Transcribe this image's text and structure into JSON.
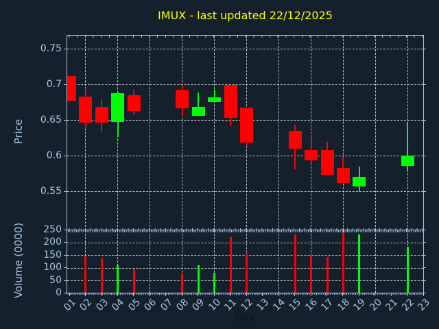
{
  "chart": {
    "title": "IMUX - last updated 22/12/2025",
    "xlabel": "Day",
    "price_ylabel": "Price",
    "volume_ylabel": "Volume (0000)"
  },
  "colors": {
    "background": "#15202d",
    "axis": "#a9c5e3",
    "grid": "rgba(217,224,231,0.85)",
    "title": "#ffff00",
    "xlabel_text": "#0c1421",
    "up": "#00ff00",
    "down": "#ff0000"
  },
  "chart_data": {
    "type": "candlestick_with_volume_bars",
    "title": "IMUX - last updated 22/12/2025",
    "xlabel": "Day",
    "price_axis": {
      "label": "Price",
      "tick_labels": [
        "0.75",
        "0.7",
        "0.65",
        "0.6",
        "0.55"
      ],
      "tick_values": [
        0.75,
        0.7,
        0.65,
        0.6,
        0.55
      ],
      "ylim": [
        0.496,
        0.769
      ],
      "grid": true
    },
    "volume_axis": {
      "label": "Volume (0000)",
      "tick_labels": [
        "250",
        "200",
        "150",
        "100",
        "50",
        "0"
      ],
      "tick_values": [
        250,
        200,
        150,
        100,
        50,
        0
      ],
      "ylim": [
        0,
        250
      ],
      "grid": true
    },
    "x_tick_labels": [
      "01",
      "02",
      "03",
      "04",
      "05",
      "06",
      "07",
      "08",
      "09",
      "10",
      "11",
      "12",
      "13",
      "14",
      "15",
      "16",
      "17",
      "18",
      "19",
      "20",
      "21",
      "22",
      "23"
    ],
    "vertical_grid_days": [
      2,
      4,
      6,
      8,
      10,
      12,
      14,
      16,
      18,
      20,
      22
    ],
    "candles": [
      {
        "day": 1,
        "open": 0.712,
        "high": 0.712,
        "low": 0.678,
        "close": 0.678,
        "direction": "down"
      },
      {
        "day": 2,
        "open": 0.684,
        "high": 0.695,
        "low": 0.639,
        "close": 0.647,
        "direction": "down"
      },
      {
        "day": 3,
        "open": 0.669,
        "high": 0.68,
        "low": 0.634,
        "close": 0.647,
        "direction": "down"
      },
      {
        "day": 4,
        "open": 0.648,
        "high": 0.69,
        "low": 0.627,
        "close": 0.688,
        "direction": "up"
      },
      {
        "day": 5,
        "open": 0.685,
        "high": 0.693,
        "low": 0.658,
        "close": 0.663,
        "direction": "down"
      },
      {
        "day": 8,
        "open": 0.693,
        "high": 0.7,
        "low": 0.657,
        "close": 0.667,
        "direction": "down"
      },
      {
        "day": 9,
        "open": 0.657,
        "high": 0.689,
        "low": 0.657,
        "close": 0.669,
        "direction": "up"
      },
      {
        "day": 10,
        "open": 0.676,
        "high": 0.693,
        "low": 0.676,
        "close": 0.683,
        "direction": "up"
      },
      {
        "day": 11,
        "open": 0.7,
        "high": 0.7,
        "low": 0.643,
        "close": 0.654,
        "direction": "down"
      },
      {
        "day": 12,
        "open": 0.668,
        "high": 0.668,
        "low": 0.614,
        "close": 0.619,
        "direction": "down"
      },
      {
        "day": 15,
        "open": 0.635,
        "high": 0.644,
        "low": 0.581,
        "close": 0.61,
        "direction": "down"
      },
      {
        "day": 16,
        "open": 0.608,
        "high": 0.629,
        "low": 0.591,
        "close": 0.594,
        "direction": "down"
      },
      {
        "day": 17,
        "open": 0.608,
        "high": 0.62,
        "low": 0.574,
        "close": 0.574,
        "direction": "down"
      },
      {
        "day": 18,
        "open": 0.583,
        "high": 0.599,
        "low": 0.562,
        "close": 0.562,
        "direction": "down"
      },
      {
        "day": 19,
        "open": 0.557,
        "high": 0.585,
        "low": 0.55,
        "close": 0.571,
        "direction": "up"
      },
      {
        "day": 22,
        "open": 0.586,
        "high": 0.648,
        "low": 0.58,
        "close": 0.601,
        "direction": "up"
      }
    ],
    "volumes": [
      {
        "day": 2,
        "value": 145,
        "direction": "down"
      },
      {
        "day": 3,
        "value": 135,
        "direction": "down"
      },
      {
        "day": 4,
        "value": 110,
        "direction": "up"
      },
      {
        "day": 5,
        "value": 95,
        "direction": "down"
      },
      {
        "day": 8,
        "value": 75,
        "direction": "down"
      },
      {
        "day": 9,
        "value": 110,
        "direction": "up"
      },
      {
        "day": 10,
        "value": 78,
        "direction": "up"
      },
      {
        "day": 11,
        "value": 220,
        "direction": "down"
      },
      {
        "day": 12,
        "value": 158,
        "direction": "down"
      },
      {
        "day": 15,
        "value": 230,
        "direction": "down"
      },
      {
        "day": 16,
        "value": 150,
        "direction": "down"
      },
      {
        "day": 17,
        "value": 140,
        "direction": "down"
      },
      {
        "day": 18,
        "value": 240,
        "direction": "down"
      },
      {
        "day": 19,
        "value": 230,
        "direction": "up"
      },
      {
        "day": 22,
        "value": 182,
        "direction": "up"
      }
    ]
  }
}
